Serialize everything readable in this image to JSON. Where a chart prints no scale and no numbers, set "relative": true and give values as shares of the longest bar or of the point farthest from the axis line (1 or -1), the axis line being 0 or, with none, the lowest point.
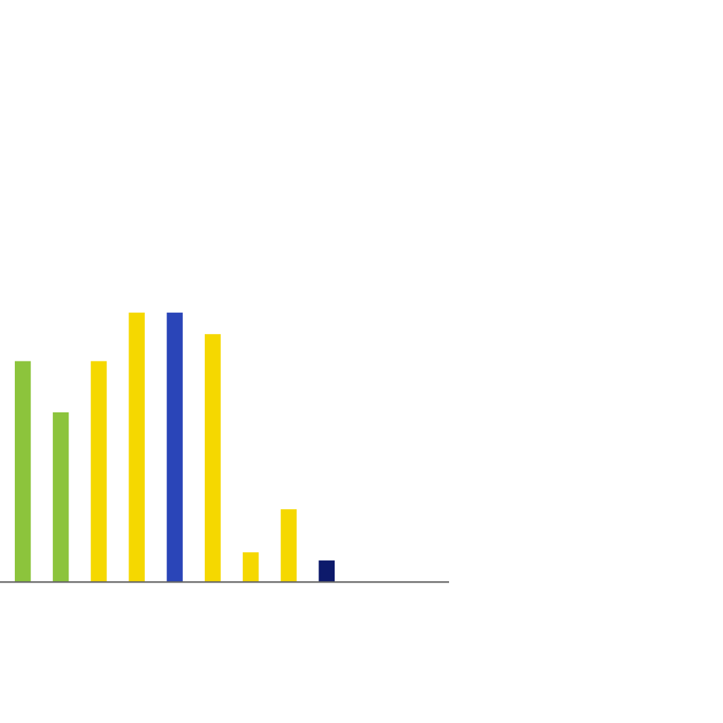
{
  "chart_data": {
    "type": "bar",
    "relative": true,
    "categories": [
      null,
      null,
      null,
      null,
      null,
      null,
      null,
      null,
      null
    ],
    "values": [
      0.82,
      0.63,
      0.82,
      1,
      1,
      0.92,
      0.11,
      0.27,
      0.08
    ],
    "colors": [
      "#8cc43c",
      "#8cc43c",
      "#f5d800",
      "#f5d800",
      "#2a45b8",
      "#f5d800",
      "#f5d800",
      "#f5d800",
      "#0d1a6b"
    ],
    "grid": false,
    "legend": false
  }
}
